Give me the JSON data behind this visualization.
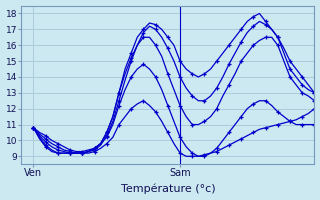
{
  "xlabel": "Température (°c)",
  "ylim": [
    8.5,
    18.5
  ],
  "xlim": [
    -2,
    46
  ],
  "xtick_positions": [
    0,
    24
  ],
  "xtick_labels": [
    "Ven",
    "Sam"
  ],
  "ytick_positions": [
    9,
    10,
    11,
    12,
    13,
    14,
    15,
    16,
    17,
    18
  ],
  "background_color": "#cce8f0",
  "grid_color": "#aaccdd",
  "line_color": "#0000cc",
  "vline_x": 24,
  "series": [
    {
      "x": [
        0,
        1,
        2,
        3,
        4,
        5,
        6,
        7,
        8,
        9,
        10,
        11,
        12,
        13,
        14,
        15,
        16,
        17,
        18,
        19,
        20,
        21,
        22,
        23,
        24,
        25,
        26,
        27,
        28,
        29,
        30,
        31,
        32,
        33,
        34,
        35,
        36,
        37,
        38,
        39,
        40,
        41,
        42,
        43,
        44,
        45,
        46
      ],
      "y": [
        10.8,
        10.5,
        10.3,
        10.0,
        9.8,
        9.6,
        9.4,
        9.3,
        9.3,
        9.4,
        9.5,
        9.8,
        10.5,
        11.5,
        13.0,
        14.5,
        15.5,
        16.5,
        17.0,
        17.4,
        17.3,
        17.0,
        16.5,
        16.0,
        15.0,
        14.5,
        14.2,
        14.0,
        14.2,
        14.5,
        15.0,
        15.5,
        16.0,
        16.5,
        17.0,
        17.5,
        17.8,
        18.0,
        17.5,
        17.0,
        16.5,
        15.5,
        14.5,
        14.0,
        13.5,
        13.2,
        13.0
      ]
    },
    {
      "x": [
        0,
        1,
        2,
        3,
        4,
        5,
        6,
        7,
        8,
        9,
        10,
        11,
        12,
        13,
        14,
        15,
        16,
        17,
        18,
        19,
        20,
        21,
        22,
        23,
        24,
        25,
        26,
        27,
        28,
        29,
        30,
        31,
        32,
        33,
        34,
        35,
        36,
        37,
        38,
        39,
        40,
        41,
        42,
        43,
        44,
        45,
        46
      ],
      "y": [
        10.8,
        10.4,
        10.1,
        9.8,
        9.6,
        9.4,
        9.3,
        9.2,
        9.2,
        9.3,
        9.4,
        9.7,
        10.3,
        11.2,
        12.5,
        13.8,
        15.0,
        16.0,
        16.8,
        17.2,
        17.0,
        16.5,
        15.8,
        15.0,
        14.0,
        13.3,
        12.8,
        12.5,
        12.5,
        12.8,
        13.3,
        14.0,
        14.8,
        15.5,
        16.2,
        16.8,
        17.2,
        17.5,
        17.3,
        17.0,
        16.5,
        15.8,
        15.0,
        14.5,
        14.0,
        13.5,
        13.0
      ]
    },
    {
      "x": [
        0,
        1,
        2,
        3,
        4,
        5,
        6,
        7,
        8,
        9,
        10,
        11,
        12,
        13,
        14,
        15,
        16,
        17,
        18,
        19,
        20,
        21,
        22,
        23,
        24,
        25,
        26,
        27,
        28,
        29,
        30,
        31,
        32,
        33,
        34,
        35,
        36,
        37,
        38,
        39,
        40,
        41,
        42,
        43,
        44,
        45,
        46
      ],
      "y": [
        10.8,
        10.3,
        9.9,
        9.6,
        9.4,
        9.3,
        9.2,
        9.2,
        9.2,
        9.3,
        9.5,
        9.8,
        10.5,
        11.5,
        13.0,
        14.2,
        15.2,
        16.0,
        16.5,
        16.5,
        16.0,
        15.3,
        14.2,
        13.2,
        12.2,
        11.5,
        11.0,
        11.0,
        11.2,
        11.5,
        12.0,
        12.8,
        13.5,
        14.2,
        15.0,
        15.5,
        16.0,
        16.3,
        16.5,
        16.5,
        16.0,
        15.0,
        14.0,
        13.5,
        13.0,
        12.8,
        12.5
      ]
    },
    {
      "x": [
        0,
        1,
        2,
        3,
        4,
        5,
        6,
        7,
        8,
        9,
        10,
        11,
        12,
        13,
        14,
        15,
        16,
        17,
        18,
        19,
        20,
        21,
        22,
        23,
        24,
        25,
        26,
        27,
        28,
        29,
        30,
        31,
        32,
        33,
        34,
        35,
        36,
        37,
        38,
        39,
        40,
        41,
        42,
        43,
        44,
        45,
        46
      ],
      "y": [
        10.8,
        10.2,
        9.7,
        9.4,
        9.2,
        9.2,
        9.2,
        9.2,
        9.2,
        9.3,
        9.5,
        9.8,
        10.2,
        11.0,
        12.2,
        13.2,
        14.0,
        14.5,
        14.8,
        14.5,
        14.0,
        13.2,
        12.2,
        11.2,
        10.2,
        9.6,
        9.2,
        9.0,
        9.0,
        9.2,
        9.5,
        10.0,
        10.5,
        11.0,
        11.5,
        12.0,
        12.3,
        12.5,
        12.5,
        12.2,
        11.8,
        11.5,
        11.2,
        11.0,
        11.0,
        11.0,
        11.0
      ]
    },
    {
      "x": [
        0,
        1,
        2,
        3,
        4,
        5,
        6,
        7,
        8,
        9,
        10,
        11,
        12,
        13,
        14,
        15,
        16,
        17,
        18,
        19,
        20,
        21,
        22,
        23,
        24,
        25,
        26,
        27,
        28,
        29,
        30,
        31,
        32,
        33,
        34,
        35,
        36,
        37,
        38,
        39,
        40,
        41,
        42,
        43,
        44,
        45,
        46
      ],
      "y": [
        10.8,
        10.1,
        9.6,
        9.3,
        9.2,
        9.2,
        9.2,
        9.2,
        9.2,
        9.2,
        9.3,
        9.5,
        9.8,
        10.2,
        11.0,
        11.5,
        12.0,
        12.3,
        12.5,
        12.2,
        11.8,
        11.2,
        10.5,
        9.8,
        9.2,
        9.0,
        9.0,
        9.0,
        9.1,
        9.2,
        9.3,
        9.5,
        9.7,
        9.9,
        10.1,
        10.3,
        10.5,
        10.7,
        10.8,
        10.9,
        11.0,
        11.1,
        11.2,
        11.3,
        11.5,
        11.7,
        12.0
      ]
    }
  ]
}
